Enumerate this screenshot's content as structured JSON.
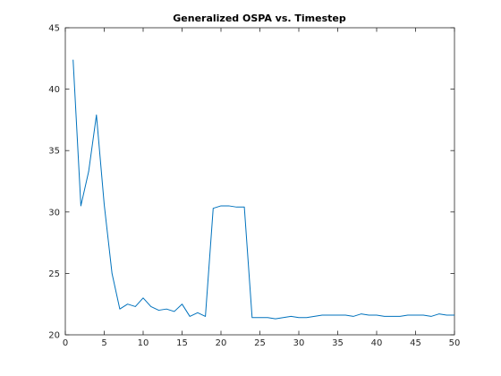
{
  "chart_data": {
    "type": "line",
    "title": "Generalized OSPA vs. Timestep",
    "xlabel": "",
    "ylabel": "",
    "xlim": [
      0,
      50
    ],
    "ylim": [
      20,
      45
    ],
    "xticks": [
      0,
      5,
      10,
      15,
      20,
      25,
      30,
      35,
      40,
      45,
      50
    ],
    "yticks": [
      20,
      25,
      30,
      35,
      40,
      45
    ],
    "box": true,
    "grid": false,
    "series": [
      {
        "color": "#0072bd",
        "x": [
          1,
          2,
          3,
          4,
          5,
          6,
          7,
          8,
          9,
          10,
          11,
          12,
          13,
          14,
          15,
          16,
          17,
          18,
          19,
          20,
          21,
          22,
          23,
          24,
          25,
          26,
          27,
          28,
          29,
          30,
          31,
          32,
          33,
          34,
          35,
          36,
          37,
          38,
          39,
          40,
          41,
          42,
          43,
          44,
          45,
          46,
          47,
          48,
          49,
          50
        ],
        "y": [
          42.4,
          30.5,
          33.3,
          37.9,
          30.6,
          25.0,
          22.1,
          22.5,
          22.3,
          23.0,
          22.3,
          22.0,
          22.1,
          21.9,
          22.5,
          21.5,
          21.8,
          21.5,
          30.3,
          30.5,
          30.5,
          30.4,
          30.4,
          21.4,
          21.4,
          21.4,
          21.3,
          21.4,
          21.5,
          21.4,
          21.4,
          21.5,
          21.6,
          21.6,
          21.6,
          21.6,
          21.5,
          21.7,
          21.6,
          21.6,
          21.5,
          21.5,
          21.5,
          21.6,
          21.6,
          21.6,
          21.5,
          21.7,
          21.6,
          21.6
        ]
      }
    ]
  }
}
